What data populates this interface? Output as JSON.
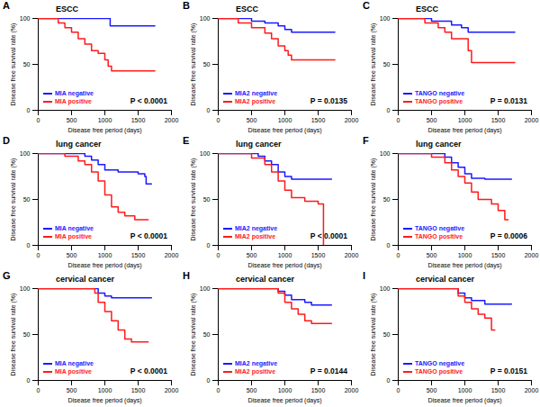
{
  "chart_data": [
    {
      "type": "step",
      "panel": "A",
      "title": "ESCC",
      "annotation": "P < 0.0001",
      "x_label": "Disease free period (days)",
      "y_label": "Disease free survival rate (%)",
      "xlim": [
        0,
        2000
      ],
      "xticks": [
        0,
        500,
        1000,
        1500,
        2000
      ],
      "ylim": [
        0,
        100
      ],
      "yticks": [
        0,
        50,
        100
      ],
      "grid": false,
      "legend": "bottom-left",
      "series": [
        {
          "name": "MIA negative",
          "color": "#1a1aff",
          "x": [
            0,
            1050,
            1080,
            1750
          ],
          "values": [
            100,
            100,
            92,
            92
          ]
        },
        {
          "name": "MIA positive",
          "color": "#ff1a1a",
          "x": [
            0,
            300,
            400,
            500,
            600,
            700,
            800,
            900,
            1000,
            1050,
            1100,
            1750
          ],
          "values": [
            100,
            95,
            90,
            85,
            78,
            72,
            65,
            62,
            55,
            48,
            43,
            43
          ]
        }
      ]
    },
    {
      "type": "step",
      "panel": "B",
      "title": "ESCC",
      "annotation": "P = 0.0135",
      "x_label": "Disease free period (days)",
      "y_label": "Disease free survival rate (%)",
      "xlim": [
        0,
        2000
      ],
      "xticks": [
        0,
        500,
        1000,
        1500,
        2000
      ],
      "ylim": [
        0,
        100
      ],
      "yticks": [
        0,
        50,
        100
      ],
      "grid": false,
      "legend": "bottom-left",
      "series": [
        {
          "name": "MIA2 negative",
          "color": "#1a1aff",
          "x": [
            0,
            500,
            700,
            900,
            1000,
            1100,
            1750
          ],
          "values": [
            100,
            97,
            95,
            92,
            88,
            85,
            85
          ]
        },
        {
          "name": "MIA2 positive",
          "color": "#ff1a1a",
          "x": [
            0,
            300,
            500,
            700,
            800,
            900,
            1000,
            1050,
            1100,
            1750
          ],
          "values": [
            100,
            95,
            90,
            84,
            78,
            70,
            65,
            60,
            55,
            55
          ]
        }
      ]
    },
    {
      "type": "step",
      "panel": "C",
      "title": "ESCC",
      "annotation": "P = 0.0131",
      "x_label": "Disease free period (days)",
      "y_label": "Disease free survival rate (%)",
      "xlim": [
        0,
        2000
      ],
      "xticks": [
        0,
        500,
        1000,
        1500,
        2000
      ],
      "ylim": [
        0,
        100
      ],
      "yticks": [
        0,
        50,
        100
      ],
      "grid": false,
      "legend": "bottom-left",
      "series": [
        {
          "name": "TANGO negative",
          "color": "#1a1aff",
          "x": [
            0,
            500,
            800,
            950,
            1050,
            1750
          ],
          "values": [
            100,
            97,
            93,
            90,
            85,
            85
          ]
        },
        {
          "name": "TANGO positive",
          "color": "#ff1a1a",
          "x": [
            0,
            400,
            600,
            700,
            800,
            1050,
            1100,
            1750
          ],
          "values": [
            100,
            95,
            90,
            85,
            78,
            65,
            52,
            52
          ]
        }
      ]
    },
    {
      "type": "step",
      "panel": "D",
      "title": "lung cancer",
      "annotation": "P < 0.0001",
      "x_label": "Disease free period (days)",
      "y_label": "Disease free survival rate (%)",
      "xlim": [
        0,
        2000
      ],
      "xticks": [
        0,
        500,
        1000,
        1500,
        2000
      ],
      "ylim": [
        0,
        100
      ],
      "yticks": [
        0,
        50,
        100
      ],
      "grid": false,
      "legend": "bottom-left",
      "series": [
        {
          "name": "MIA negative",
          "color": "#1a1aff",
          "x": [
            0,
            700,
            800,
            900,
            1000,
            1200,
            1500,
            1600,
            1620,
            1700
          ],
          "values": [
            100,
            97,
            93,
            88,
            82,
            80,
            78,
            75,
            67,
            67
          ]
        },
        {
          "name": "MIA positive",
          "color": "#ff1a1a",
          "x": [
            0,
            400,
            600,
            700,
            800,
            900,
            1000,
            1100,
            1200,
            1300,
            1450,
            1650
          ],
          "values": [
            100,
            97,
            92,
            88,
            80,
            70,
            55,
            42,
            36,
            32,
            28,
            28
          ]
        }
      ]
    },
    {
      "type": "step",
      "panel": "E",
      "title": "lung cancer",
      "annotation": "P < 0.0001",
      "x_label": "Disease free period (days)",
      "y_label": "Disease free survival rate (%)",
      "xlim": [
        0,
        2000
      ],
      "xticks": [
        0,
        500,
        1000,
        1500,
        2000
      ],
      "ylim": [
        0,
        100
      ],
      "yticks": [
        0,
        50,
        100
      ],
      "grid": false,
      "legend": "bottom-left",
      "series": [
        {
          "name": "MIA2 negative",
          "color": "#1a1aff",
          "x": [
            0,
            600,
            700,
            800,
            900,
            1000,
            1100,
            1700
          ],
          "values": [
            100,
            97,
            92,
            88,
            80,
            75,
            72,
            72
          ]
        },
        {
          "name": "MIA2 positive",
          "color": "#ff1a1a",
          "x": [
            0,
            500,
            700,
            800,
            900,
            1000,
            1100,
            1300,
            1500,
            1580
          ],
          "values": [
            100,
            95,
            88,
            80,
            70,
            60,
            52,
            48,
            45,
            0
          ]
        }
      ]
    },
    {
      "type": "step",
      "panel": "F",
      "title": "lung cancer",
      "annotation": "P = 0.0006",
      "x_label": "Disease free period (days)",
      "y_label": "Disease free survival rate (%)",
      "xlim": [
        0,
        2000
      ],
      "xticks": [
        0,
        500,
        1000,
        1500,
        2000
      ],
      "ylim": [
        0,
        100
      ],
      "yticks": [
        0,
        50,
        100
      ],
      "grid": false,
      "legend": "bottom-left",
      "series": [
        {
          "name": "TANGO negative",
          "color": "#1a1aff",
          "x": [
            0,
            700,
            800,
            900,
            1000,
            1100,
            1300,
            1700
          ],
          "values": [
            100,
            96,
            90,
            85,
            78,
            73,
            72,
            72
          ]
        },
        {
          "name": "TANGO positive",
          "color": "#ff1a1a",
          "x": [
            0,
            500,
            700,
            800,
            900,
            1000,
            1100,
            1200,
            1400,
            1500,
            1600,
            1650
          ],
          "values": [
            100,
            96,
            90,
            82,
            75,
            68,
            58,
            50,
            45,
            38,
            28,
            28
          ]
        }
      ]
    },
    {
      "type": "step",
      "panel": "G",
      "title": "cervical cancer",
      "annotation": "P < 0.0001",
      "x_label": "Disease free period (days)",
      "y_label": "Disease free survival rate (%)",
      "xlim": [
        0,
        2000
      ],
      "xticks": [
        0,
        500,
        1000,
        1500,
        2000
      ],
      "ylim": [
        0,
        100
      ],
      "yticks": [
        0,
        50,
        100
      ],
      "grid": false,
      "legend": "bottom-left",
      "series": [
        {
          "name": "MIA negative",
          "color": "#1a1aff",
          "x": [
            0,
            900,
            1000,
            1100,
            1700
          ],
          "values": [
            100,
            95,
            92,
            90,
            90
          ]
        },
        {
          "name": "MIA positive",
          "color": "#ff1a1a",
          "x": [
            0,
            850,
            900,
            1000,
            1100,
            1200,
            1300,
            1400,
            1650
          ],
          "values": [
            100,
            95,
            85,
            75,
            65,
            55,
            45,
            42,
            42
          ]
        }
      ]
    },
    {
      "type": "step",
      "panel": "H",
      "title": "cervical cancer",
      "annotation": "P = 0.0144",
      "x_label": "Disease free period (days)",
      "y_label": "Disease free survival rate (%)",
      "xlim": [
        0,
        2000
      ],
      "xticks": [
        0,
        500,
        1000,
        1500,
        2000
      ],
      "ylim": [
        0,
        100
      ],
      "yticks": [
        0,
        50,
        100
      ],
      "grid": false,
      "legend": "bottom-left",
      "series": [
        {
          "name": "MIA2 negative",
          "color": "#1a1aff",
          "x": [
            0,
            900,
            1000,
            1100,
            1300,
            1400,
            1700
          ],
          "values": [
            100,
            97,
            93,
            88,
            85,
            82,
            82
          ]
        },
        {
          "name": "MIA2 positive",
          "color": "#ff1a1a",
          "x": [
            0,
            900,
            1000,
            1100,
            1200,
            1300,
            1400,
            1700
          ],
          "values": [
            100,
            95,
            85,
            78,
            72,
            65,
            62,
            62
          ]
        }
      ]
    },
    {
      "type": "step",
      "panel": "I",
      "title": "cervical cancer",
      "annotation": "P = 0.0151",
      "x_label": "Disease free period (days)",
      "y_label": "Disease free survival rate (%)",
      "xlim": [
        0,
        2000
      ],
      "xticks": [
        0,
        500,
        1000,
        1500,
        2000
      ],
      "ylim": [
        0,
        100
      ],
      "yticks": [
        0,
        50,
        100
      ],
      "grid": false,
      "legend": "bottom-left",
      "series": [
        {
          "name": "TANGO negative",
          "color": "#1a1aff",
          "x": [
            0,
            900,
            1000,
            1100,
            1300,
            1700
          ],
          "values": [
            100,
            95,
            90,
            87,
            83,
            83
          ]
        },
        {
          "name": "TANGO positive",
          "color": "#ff1a1a",
          "x": [
            0,
            900,
            1000,
            1100,
            1200,
            1300,
            1400,
            1450
          ],
          "values": [
            100,
            92,
            85,
            78,
            72,
            68,
            55,
            55
          ]
        }
      ]
    }
  ]
}
